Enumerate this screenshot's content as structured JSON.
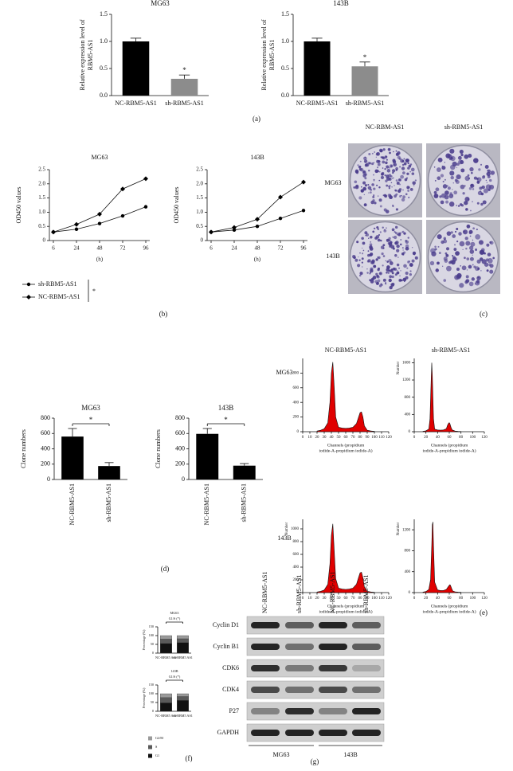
{
  "chart_data": [
    {
      "type": "bar",
      "title": "MG63",
      "ylabel": [
        "Relative expression level of",
        "RBM5-AS1"
      ],
      "categories": [
        "NC-RBM5-AS1",
        "sh-RBM5-AS1"
      ],
      "values": [
        1.0,
        0.31
      ],
      "errors": [
        0.06,
        0.07
      ],
      "colors": [
        "#000000",
        "#8c8c8c"
      ],
      "ylim": [
        0,
        1.5
      ],
      "yticks": [
        {
          "value": 0,
          "label": "0.0"
        },
        0.5,
        {
          "value": 1,
          "label": "1.0"
        },
        1.5
      ],
      "annotation": "*"
    },
    {
      "type": "bar",
      "title": "143B",
      "ylabel": [
        "Relative expression level of",
        "RBM5-AS1"
      ],
      "categories": [
        "NC-RBM5-AS1",
        "sh-RBM5-AS1"
      ],
      "values": [
        1.0,
        0.54
      ],
      "errors": [
        0.06,
        0.08
      ],
      "colors": [
        "#000000",
        "#8c8c8c"
      ],
      "ylim": [
        0,
        1.5
      ],
      "yticks": [
        {
          "value": 0,
          "label": "0.0"
        },
        0.5,
        {
          "value": 1,
          "label": "1.0"
        },
        1.5
      ],
      "annotation": "*"
    },
    {
      "type": "line",
      "xlabel": "(h)",
      "ylabel": "OD450 values",
      "categories": [
        "6",
        "24",
        "48",
        "72",
        "96"
      ],
      "ylim": [
        0,
        2.5
      ],
      "yticks": [
        0,
        0.5,
        {
          "value": 1,
          "label": "1.0"
        },
        1.5,
        {
          "value": 2,
          "label": "2.0"
        },
        2.5
      ],
      "series": [
        {
          "name": "sh-RBM5-AS1",
          "color": "#000000",
          "marker": "circle"
        },
        {
          "name": "NC-RBM5-AS1",
          "color": "#000000",
          "marker": "diamond"
        }
      ],
      "annotation": "*",
      "groups": [
        {
          "title": "MG63",
          "values": [
            [
              0.3,
              0.4,
              0.6,
              0.87,
              1.19
            ],
            [
              0.3,
              0.57,
              0.93,
              1.82,
              2.18
            ]
          ]
        },
        {
          "title": "143B",
          "values": [
            [
              0.3,
              0.37,
              0.5,
              0.78,
              1.06
            ],
            [
              0.3,
              0.46,
              0.75,
              1.53,
              2.06
            ]
          ]
        }
      ]
    },
    {
      "type": "bar",
      "title": "MG63",
      "ylabel": "Clone numbers",
      "categories": [
        "NC-RBM5-AS1",
        "sh-RBM5-AS1"
      ],
      "values": [
        560,
        175
      ],
      "errors": [
        105,
        45
      ],
      "colors": [
        "#000000",
        "#000000"
      ],
      "ylim": [
        0,
        800
      ],
      "yticks": [
        0,
        200,
        400,
        600,
        800
      ],
      "annotation": "*"
    },
    {
      "type": "bar",
      "title": "143B",
      "ylabel": "Clone numbers",
      "categories": [
        "NC-RBM5-AS1",
        "sh-RBM5-AS1"
      ],
      "values": [
        595,
        180
      ],
      "errors": [
        70,
        28
      ],
      "colors": [
        "#000000",
        "#000000"
      ],
      "ylim": [
        0,
        800
      ],
      "yticks": [
        0,
        200,
        400,
        600,
        800
      ],
      "annotation": "*"
    },
    {
      "type": "area",
      "xlabel": [
        "Channels (propidium",
        "iodide-A-propidium iodide-A)"
      ],
      "color": "#e00000",
      "x": [
        20,
        25,
        30,
        35,
        38,
        40,
        42,
        44,
        46,
        50,
        55,
        60,
        65,
        70,
        75,
        78,
        80,
        82,
        84,
        86,
        90,
        95,
        100
      ],
      "values": [
        10,
        20,
        40,
        120,
        400,
        800,
        950,
        600,
        200,
        60,
        50,
        45,
        50,
        60,
        110,
        200,
        260,
        270,
        200,
        80,
        20,
        10,
        5
      ],
      "xlim": [
        0,
        120
      ],
      "xticks": [
        0,
        10,
        20,
        30,
        40,
        50,
        60,
        70,
        80,
        90,
        100,
        110,
        120
      ],
      "ylim": [
        0,
        1000
      ],
      "yticks": [
        0,
        200,
        400,
        600,
        800
      ]
    },
    {
      "type": "area",
      "xlabel": [
        "Channels (propidium",
        "iodide-A-propidium iodide-A)"
      ],
      "ylabel": "Number",
      "color": "#e00000",
      "x": [
        15,
        20,
        25,
        27,
        29,
        30,
        31,
        33,
        35,
        40,
        45,
        50,
        55,
        57,
        59,
        60,
        61,
        63,
        65,
        70,
        75,
        80
      ],
      "values": [
        10,
        20,
        60,
        300,
        1200,
        1600,
        1300,
        300,
        60,
        40,
        35,
        40,
        70,
        150,
        200,
        210,
        190,
        100,
        40,
        15,
        8,
        5
      ],
      "xlim": [
        0,
        120
      ],
      "xticks": [
        0,
        20,
        40,
        60,
        80,
        100,
        120
      ],
      "ylim": [
        0,
        1700
      ],
      "yticks": [
        0,
        400,
        800,
        1200,
        1600
      ]
    },
    {
      "type": "area",
      "xlabel": [
        "Channels (propidium",
        "iodide-A-propidium iodide-A)"
      ],
      "ylabel": "Number",
      "color": "#e00000",
      "x": [
        20,
        25,
        30,
        35,
        38,
        40,
        42,
        44,
        46,
        50,
        55,
        60,
        65,
        70,
        75,
        78,
        80,
        82,
        84,
        86,
        90,
        95,
        100
      ],
      "values": [
        10,
        20,
        40,
        130,
        450,
        900,
        1080,
        650,
        220,
        70,
        55,
        50,
        55,
        70,
        130,
        240,
        310,
        320,
        230,
        90,
        20,
        10,
        5
      ],
      "xlim": [
        0,
        120
      ],
      "xticks": [
        0,
        10,
        20,
        30,
        40,
        50,
        60,
        70,
        80,
        90,
        100,
        110,
        120
      ],
      "ylim": [
        0,
        1150
      ],
      "yticks": [
        0,
        200,
        400,
        600,
        800,
        1000
      ]
    },
    {
      "type": "area",
      "xlabel": [
        "Channels (propidium",
        "iodide-A-propidium iodide-A)"
      ],
      "ylabel": "Number",
      "color": "#e00000",
      "x": [
        15,
        20,
        25,
        28,
        30,
        31,
        32,
        33,
        35,
        40,
        45,
        50,
        55,
        58,
        60,
        61,
        62,
        64,
        66,
        70,
        75,
        80
      ],
      "values": [
        10,
        20,
        60,
        250,
        900,
        1300,
        1350,
        900,
        200,
        50,
        40,
        40,
        60,
        110,
        140,
        150,
        140,
        80,
        30,
        15,
        8,
        5
      ],
      "xlim": [
        0,
        120
      ],
      "xticks": [
        0,
        20,
        40,
        60,
        80,
        100,
        120
      ],
      "ylim": [
        0,
        1400
      ],
      "yticks": [
        0,
        400,
        800,
        1200
      ]
    },
    {
      "type": "stacked_bar",
      "ylabel": "Percentage (%)",
      "categories": [
        "NC-RBM5 AS1",
        "sh-RBM5 AS1"
      ],
      "ylim": [
        0,
        150
      ],
      "yticks": [
        0,
        50,
        100,
        150
      ],
      "annotation": "G1/S (*)",
      "series": [
        {
          "name": "G1",
          "color": "#111111"
        },
        {
          "name": "S",
          "color": "#5a5a5a"
        },
        {
          "name": "G2/M",
          "color": "#9a9a9a"
        }
      ],
      "groups": [
        {
          "title": "MG63",
          "values": [
            [
              55,
              60
            ],
            [
              25,
              22
            ],
            [
              20,
              18
            ]
          ]
        },
        {
          "title": "143B",
          "values": [
            [
              48,
              62
            ],
            [
              30,
              22
            ],
            [
              22,
              16
            ]
          ]
        }
      ]
    }
  ],
  "panel_labels": [
    "(a)",
    "(b)",
    "(c)",
    "(d)",
    "(e)",
    "(f)",
    "(g)"
  ],
  "colony": {
    "columns": [
      "NC-RBM-AS1",
      "sh-RBM5-AS1"
    ],
    "rows": [
      "MG63",
      "143B"
    ]
  },
  "flow": {
    "columns": [
      "NC-RBM5-AS1",
      "sh-RBM5-AS1"
    ],
    "rows": [
      "MG63",
      "143B"
    ]
  },
  "western": {
    "lanes": [
      "NC-RBM5-AS1",
      "sh-RBM5-AS1",
      "NC-RBM5-AS1",
      "sh-RBM5-AS1"
    ],
    "proteins": [
      "Cyclin D1",
      "Cyclin B1",
      "CDK6",
      "CDK4",
      "P27",
      "GAPDH"
    ],
    "groups": [
      "MG63",
      "143B"
    ]
  }
}
